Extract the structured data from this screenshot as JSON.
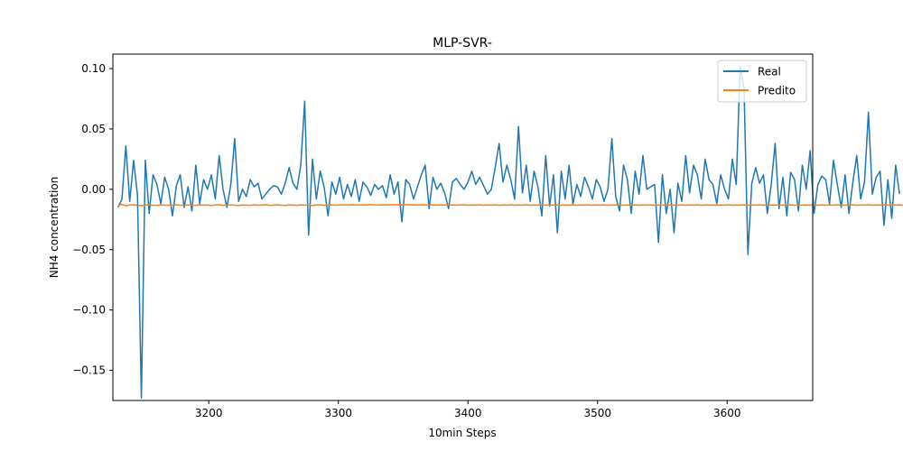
{
  "chart_data": {
    "type": "line",
    "title": "MLP-SVR-",
    "xlabel": "10min Steps",
    "ylabel": "NH4 concentration",
    "xlim": [
      3126,
      3666
    ],
    "ylim": [
      -0.175,
      0.112
    ],
    "xticks": [
      3200,
      3300,
      3400,
      3500,
      3600
    ],
    "yticks": [
      -0.15,
      -0.1,
      -0.05,
      0.0,
      0.05,
      0.1
    ],
    "ytick_labels": [
      "−0.15",
      "−0.10",
      "−0.05",
      "0.00",
      "0.05",
      "0.10"
    ],
    "grid": false,
    "legend": {
      "position": "top-right"
    },
    "series": [
      {
        "name": "Real",
        "color": "#1f77b4",
        "x_start": 3130,
        "x_step": 3,
        "values": [
          -0.015,
          -0.008,
          0.036,
          -0.01,
          0.024,
          -0.005,
          -0.173,
          0.024,
          -0.02,
          0.012,
          0.004,
          -0.012,
          0.01,
          0.0,
          -0.022,
          0.003,
          0.012,
          -0.015,
          0.002,
          -0.018,
          0.02,
          -0.012,
          0.008,
          0.0,
          0.012,
          -0.008,
          0.028,
          0.0,
          -0.015,
          0.004,
          0.042,
          -0.01,
          0.0,
          -0.006,
          0.008,
          0.002,
          0.005,
          -0.008,
          -0.004,
          0.0,
          0.003,
          0.002,
          -0.004,
          0.005,
          0.018,
          0.005,
          0.0,
          0.02,
          0.073,
          -0.038,
          0.025,
          -0.008,
          0.015,
          0.002,
          -0.022,
          0.006,
          -0.004,
          0.01,
          -0.008,
          0.004,
          -0.006,
          0.008,
          -0.01,
          0.006,
          0.002,
          -0.005,
          0.004,
          0.0,
          0.003,
          -0.007,
          0.012,
          -0.004,
          0.006,
          -0.027,
          0.008,
          0.004,
          -0.008,
          0.002,
          0.012,
          0.02,
          -0.016,
          0.01,
          0.0,
          0.005,
          -0.003,
          -0.016,
          0.006,
          0.009,
          0.004,
          0.0,
          0.006,
          0.015,
          0.004,
          0.01,
          0.003,
          -0.004,
          0.0,
          0.018,
          0.038,
          0.006,
          0.02,
          0.008,
          -0.008,
          0.052,
          -0.003,
          0.02,
          -0.01,
          0.015,
          0.002,
          -0.022,
          0.028,
          -0.014,
          0.012,
          -0.036,
          0.015,
          -0.008,
          0.02,
          -0.012,
          0.004,
          -0.006,
          0.01,
          0.002,
          -0.008,
          0.008,
          0.002,
          -0.01,
          0.0,
          0.042,
          -0.006,
          -0.018,
          0.02,
          0.008,
          -0.02,
          0.015,
          -0.004,
          0.028,
          0.0,
          0.002,
          0.004,
          -0.044,
          0.012,
          -0.02,
          0.0,
          -0.036,
          0.005,
          -0.01,
          0.028,
          -0.003,
          0.02,
          0.012,
          -0.008,
          0.025,
          0.008,
          0.004,
          -0.012,
          0.012,
          0.0,
          -0.008,
          0.025,
          0.004,
          0.102,
          0.084,
          -0.054,
          0.005,
          0.018,
          0.005,
          0.012,
          -0.02,
          0.004,
          0.038,
          -0.016,
          0.01,
          -0.022,
          0.014,
          0.008,
          -0.018,
          0.02,
          0.0,
          0.032,
          -0.02,
          0.004,
          0.011,
          0.008,
          -0.012,
          0.024,
          0.004,
          -0.015,
          0.012,
          -0.02,
          0.006,
          0.028,
          -0.008,
          0.006,
          0.064,
          -0.004,
          0.01,
          0.015,
          -0.03,
          0.008,
          -0.024,
          0.02,
          -0.004
        ]
      },
      {
        "name": "Predito",
        "color": "#ff7f0e",
        "x_start": 3130,
        "x_step": 3,
        "values": [
          -0.0135,
          -0.0125,
          -0.0138,
          -0.013,
          -0.0128,
          -0.0133,
          -0.0135,
          -0.013,
          -0.0128,
          -0.0132,
          -0.0134,
          -0.0129,
          -0.0131,
          -0.0133,
          -0.013,
          -0.0128,
          -0.0132,
          -0.0134,
          -0.013,
          -0.0131,
          -0.0133,
          -0.0129,
          -0.0132,
          -0.013,
          -0.0134,
          -0.013,
          -0.0128,
          -0.0133,
          -0.0131,
          -0.0129,
          -0.0132,
          -0.0134,
          -0.013,
          -0.0131,
          -0.0133,
          -0.0129,
          -0.0132,
          -0.013,
          -0.0128,
          -0.0133,
          -0.0131,
          -0.0129,
          -0.0132,
          -0.0134,
          -0.013,
          -0.0131,
          -0.0133,
          -0.0129,
          -0.0132,
          -0.013,
          -0.0134,
          -0.013,
          -0.0128,
          -0.0133,
          -0.0131,
          -0.0129,
          -0.0132,
          -0.013,
          -0.0128,
          -0.0131,
          -0.0127,
          -0.0129,
          -0.013,
          -0.0128,
          -0.013,
          -0.0127,
          -0.0129,
          -0.013,
          -0.0128,
          -0.013,
          -0.0127,
          -0.0129,
          -0.0128,
          -0.013,
          -0.0127,
          -0.0129,
          -0.0128,
          -0.013,
          -0.0128,
          -0.0129,
          -0.013,
          -0.0128,
          -0.0131,
          -0.0129,
          -0.013,
          -0.0132,
          -0.0129,
          -0.0131,
          -0.013,
          -0.0129,
          -0.0132,
          -0.013,
          -0.0131,
          -0.0129,
          -0.0132,
          -0.013,
          -0.0131,
          -0.0129,
          -0.0132,
          -0.013,
          -0.0131,
          -0.0129,
          -0.0132,
          -0.013,
          -0.0131,
          -0.0129,
          -0.0132,
          -0.013,
          -0.0131,
          -0.0129,
          -0.0132,
          -0.013,
          -0.0131,
          -0.0129,
          -0.0132,
          -0.013,
          -0.0131,
          -0.0129,
          -0.0132,
          -0.013,
          -0.0131,
          -0.0129,
          -0.0132,
          -0.013,
          -0.0131,
          -0.0129,
          -0.0132,
          -0.013,
          -0.0131,
          -0.0129,
          -0.0132,
          -0.013,
          -0.0131,
          -0.0129,
          -0.0132,
          -0.013,
          -0.0131,
          -0.0129,
          -0.0132,
          -0.013,
          -0.0131,
          -0.0129,
          -0.0132,
          -0.013,
          -0.0131,
          -0.0129,
          -0.0132,
          -0.013,
          -0.0131,
          -0.0129,
          -0.0132,
          -0.013,
          -0.0131,
          -0.0129,
          -0.0132,
          -0.013,
          -0.0131,
          -0.0129,
          -0.0132,
          -0.013,
          -0.0131,
          -0.0129,
          -0.0132,
          -0.013,
          -0.0131,
          -0.0129,
          -0.0132,
          -0.013,
          -0.0131,
          -0.0129,
          -0.0132,
          -0.013,
          -0.0131,
          -0.0129,
          -0.0132,
          -0.013,
          -0.0131,
          -0.0129,
          -0.0132,
          -0.013,
          -0.0131,
          -0.0129,
          -0.0132,
          -0.013,
          -0.0131,
          -0.0129,
          -0.0132,
          -0.013,
          -0.0131,
          -0.0129,
          -0.0132,
          -0.013,
          -0.0131,
          -0.0129,
          -0.0132,
          -0.013,
          -0.0131,
          -0.0129,
          -0.0132,
          -0.013,
          -0.0131,
          -0.0129,
          -0.0132,
          -0.013,
          -0.0131,
          -0.0129
        ]
      }
    ]
  }
}
